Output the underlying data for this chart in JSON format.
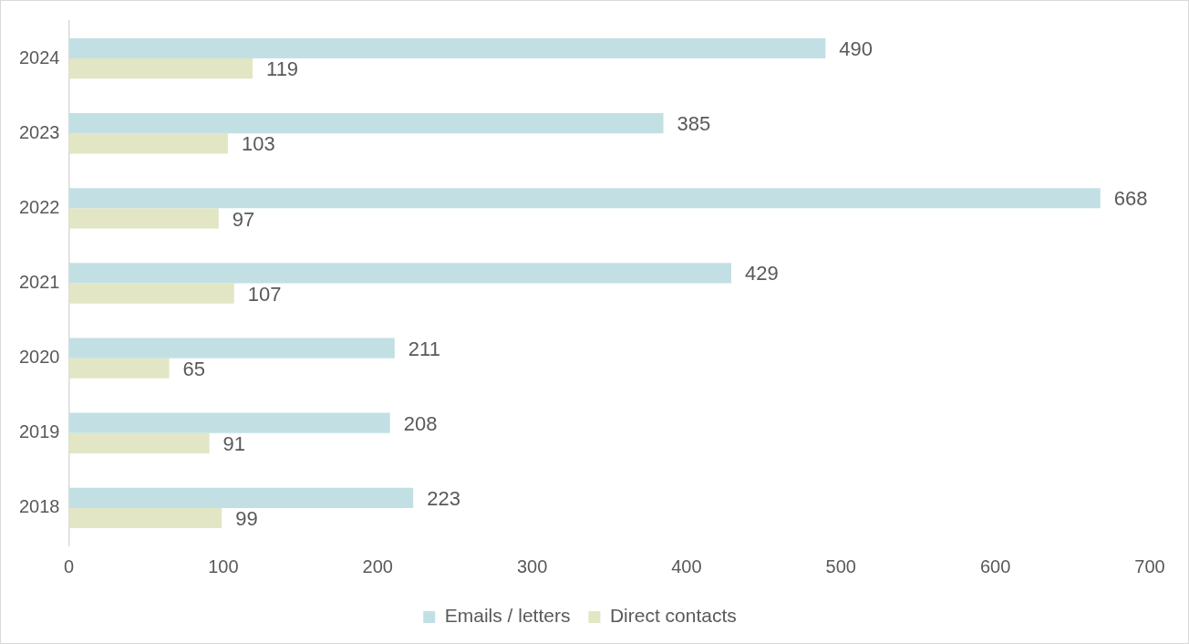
{
  "chart_data": {
    "type": "bar",
    "orientation": "horizontal",
    "categories": [
      "2024",
      "2023",
      "2022",
      "2021",
      "2020",
      "2019",
      "2018"
    ],
    "series": [
      {
        "name": "Emails / letters",
        "color": "#c2e0e4",
        "values": [
          490,
          385,
          668,
          429,
          211,
          208,
          223
        ]
      },
      {
        "name": "Direct contacts",
        "color": "#e2e6c4",
        "values": [
          119,
          103,
          97,
          107,
          65,
          91,
          99
        ]
      }
    ],
    "xlim": [
      0,
      700
    ],
    "xticks": [
      0,
      100,
      200,
      300,
      400,
      500,
      600,
      700
    ],
    "grid": false,
    "legend": "bottom",
    "data_labels": true
  }
}
